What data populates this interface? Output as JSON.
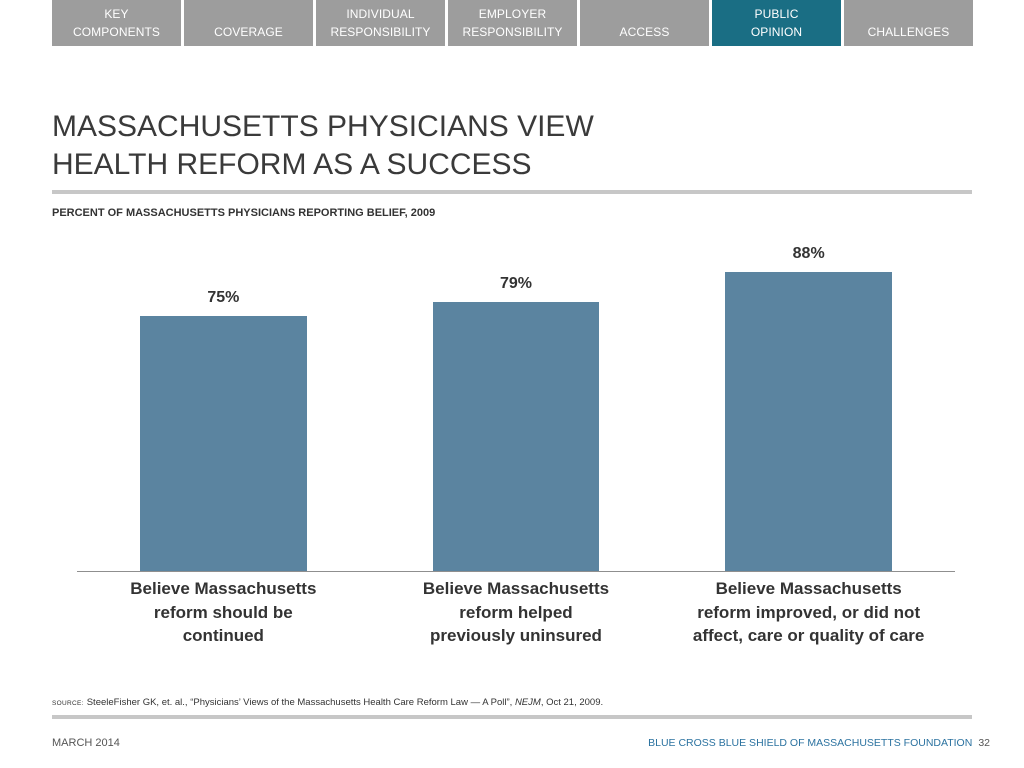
{
  "colors": {
    "nav_tab": "#9d9d9d",
    "nav_tab_active": "#1a6e84",
    "bar": "#5b84a0",
    "footer_organization": "#2b72a0"
  },
  "nav": {
    "tabs": [
      {
        "label": "KEY\nCOMPONENTS",
        "active": false
      },
      {
        "label": "COVERAGE",
        "active": false
      },
      {
        "label": "INDIVIDUAL\nRESPONSIBILITY",
        "active": false
      },
      {
        "label": "EMPLOYER\nRESPONSIBILITY",
        "active": false
      },
      {
        "label": "ACCESS",
        "active": false
      },
      {
        "label": "PUBLIC\nOPINION",
        "active": true
      },
      {
        "label": "CHALLENGES",
        "active": false
      }
    ]
  },
  "slide": {
    "title": "MASSACHUSETTS PHYSICIANS VIEW\nHEALTH REFORM AS A SUCCESS"
  },
  "chart_data": {
    "type": "bar",
    "title": "PERCENT OF MASSACHUSETTS PHYSICIANS REPORTING BELIEF, 2009",
    "categories": [
      "Believe Massachusetts\nreform should be\ncontinued",
      "Believe Massachusetts\nreform helped\npreviously uninsured",
      "Believe Massachusetts\nreform improved, or did not\naffect, care or quality of care"
    ],
    "values": [
      75,
      79,
      88
    ],
    "data_labels": [
      "75%",
      "79%",
      "88%"
    ],
    "ylim": [
      0,
      100
    ],
    "grid": false,
    "legend": false
  },
  "source": {
    "label": "SOURCE:",
    "citation": "SteeleFisher GK, et. al., “Physicians’ Views of the Massachusetts Health Care Reform Law — A Poll”, ",
    "journal": "NEJM",
    "date": ", Oct 21, 2009."
  },
  "footer": {
    "date": "MARCH 2014",
    "organization": "BLUE CROSS BLUE SHIELD OF MASSACHUSETTS FOUNDATION",
    "page_number": "32"
  }
}
